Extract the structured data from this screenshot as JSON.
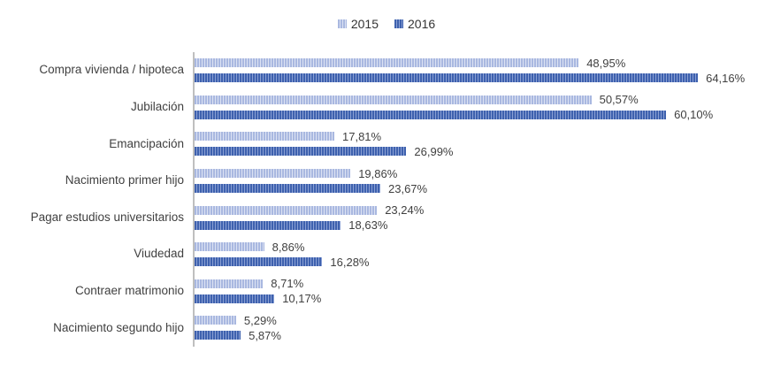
{
  "chart_data": {
    "type": "bar",
    "orientation": "horizontal",
    "title": "",
    "categories": [
      "Compra vivienda / hipoteca",
      "Jubilación",
      "Emancipación",
      "Nacimiento primer hijo",
      "Pagar estudios universitarios",
      "Viudedad",
      "Contraer matrimonio",
      "Nacimiento segundo hijo"
    ],
    "series": [
      {
        "name": "2015",
        "values": [
          48.95,
          50.57,
          17.81,
          19.86,
          23.24,
          8.86,
          8.71,
          5.29
        ],
        "labels": [
          "48,95%",
          "50,57%",
          "17,81%",
          "19,86%",
          "23,24%",
          "8,86%",
          "8,71%",
          "5,29%"
        ],
        "stripe_dark": "#a9b8e0",
        "stripe_light": "#dce2f3"
      },
      {
        "name": "2016",
        "values": [
          64.16,
          60.1,
          26.99,
          23.67,
          18.63,
          16.28,
          10.17,
          5.87
        ],
        "labels": [
          "64,16%",
          "60,10%",
          "26,99%",
          "23,67%",
          "18,63%",
          "16,28%",
          "10,17%",
          "5,87%"
        ],
        "stripe_dark": "#3e61ae",
        "stripe_light": "#8aa0d4"
      }
    ],
    "value_format": "0,00%",
    "xlim": [
      0,
      73.5
    ],
    "grid": false,
    "legend_position": "top-center",
    "axis_line_color": "#bfbfbf",
    "text_color": "#404040"
  }
}
